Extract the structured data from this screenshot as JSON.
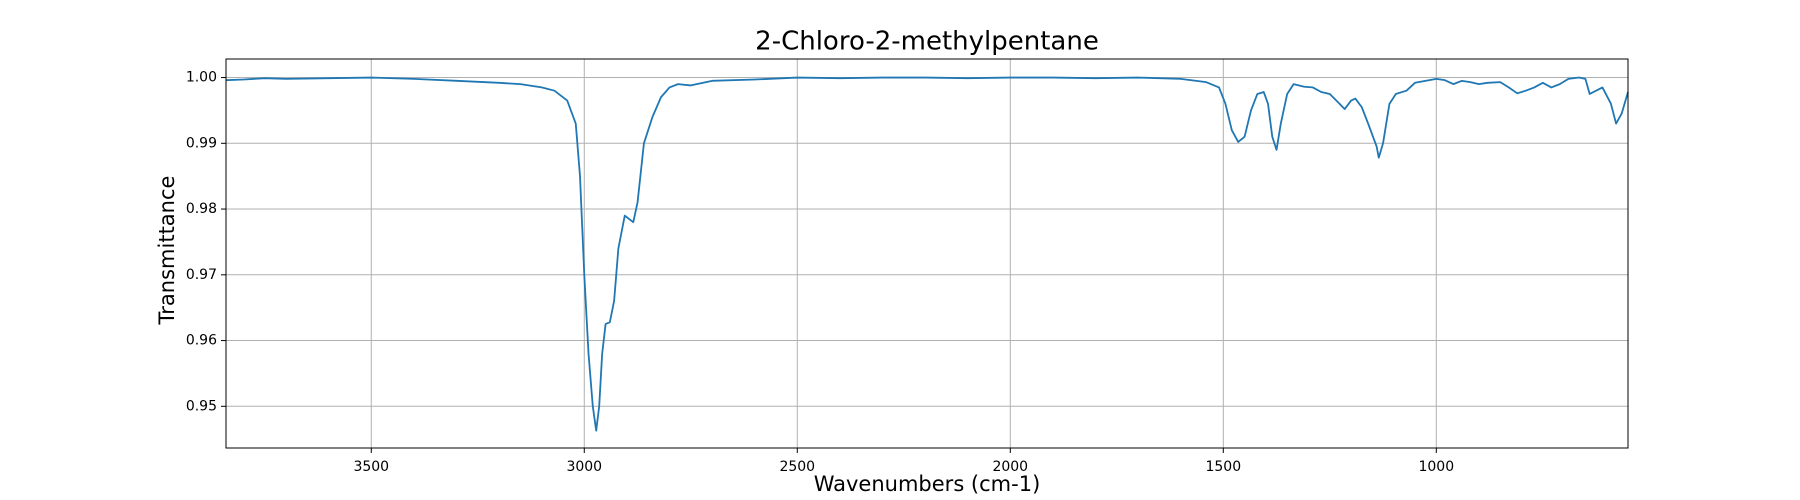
{
  "chart_data": {
    "type": "line",
    "title": "2-Chloro-2-methylpentane",
    "x_label": "Wavenumbers (cm-1)",
    "y_label": "Transmittance",
    "color": "#1f77b4",
    "grid": true,
    "xlim": [
      3841,
      550
    ],
    "ylim": [
      0.94366,
      1.00282
    ],
    "xticks": [
      3500,
      3000,
      2500,
      2000,
      1500,
      1000
    ],
    "yticks": [
      0.95,
      0.96,
      0.97,
      0.98,
      0.99,
      {
        "value": 1,
        "label": "1.00"
      }
    ],
    "x": [
      3841,
      3800,
      3750,
      3700,
      3600,
      3500,
      3400,
      3300,
      3200,
      3150,
      3100,
      3070,
      3040,
      3020,
      3010,
      3000,
      2990,
      2980,
      2972,
      2965,
      2958,
      2950,
      2940,
      2930,
      2920,
      2905,
      2895,
      2885,
      2875,
      2860,
      2840,
      2820,
      2800,
      2780,
      2750,
      2700,
      2600,
      2500,
      2400,
      2300,
      2200,
      2100,
      2000,
      1900,
      1800,
      1700,
      1600,
      1540,
      1510,
      1495,
      1480,
      1465,
      1450,
      1435,
      1420,
      1405,
      1395,
      1385,
      1375,
      1365,
      1350,
      1335,
      1310,
      1290,
      1270,
      1250,
      1230,
      1215,
      1200,
      1190,
      1175,
      1160,
      1140,
      1135,
      1125,
      1110,
      1095,
      1070,
      1050,
      1000,
      980,
      960,
      940,
      920,
      900,
      880,
      850,
      830,
      810,
      790,
      770,
      750,
      730,
      710,
      690,
      665,
      650,
      640,
      610,
      590,
      578,
      565,
      550
    ],
    "values": [
      0.9996,
      0.9997,
      0.9999,
      0.9998,
      0.9999,
      1.0,
      0.9998,
      0.9995,
      0.9992,
      0.999,
      0.9985,
      0.998,
      0.9965,
      0.993,
      0.985,
      0.97,
      0.958,
      0.95,
      0.9463,
      0.95,
      0.958,
      0.9625,
      0.9628,
      0.966,
      0.974,
      0.979,
      0.9785,
      0.978,
      0.981,
      0.99,
      0.994,
      0.997,
      0.9985,
      0.999,
      0.9988,
      0.9995,
      0.9997,
      1.0,
      0.9999,
      1.0,
      1.0,
      0.9999,
      1.0,
      1.0,
      0.9999,
      1.0,
      0.9998,
      0.9993,
      0.9985,
      0.996,
      0.992,
      0.9902,
      0.991,
      0.995,
      0.9975,
      0.9978,
      0.996,
      0.991,
      0.989,
      0.993,
      0.9975,
      0.999,
      0.9986,
      0.9985,
      0.9978,
      0.9975,
      0.9962,
      0.9952,
      0.9965,
      0.9968,
      0.9955,
      0.993,
      0.9895,
      0.9878,
      0.99,
      0.996,
      0.9975,
      0.998,
      0.9992,
      0.9998,
      0.9996,
      0.999,
      0.9995,
      0.9993,
      0.999,
      0.9992,
      0.9993,
      0.9985,
      0.9976,
      0.998,
      0.9985,
      0.9992,
      0.9985,
      0.999,
      0.9998,
      1.0,
      0.9998,
      0.9975,
      0.9985,
      0.996,
      0.993,
      0.9945,
      0.9978
    ]
  }
}
